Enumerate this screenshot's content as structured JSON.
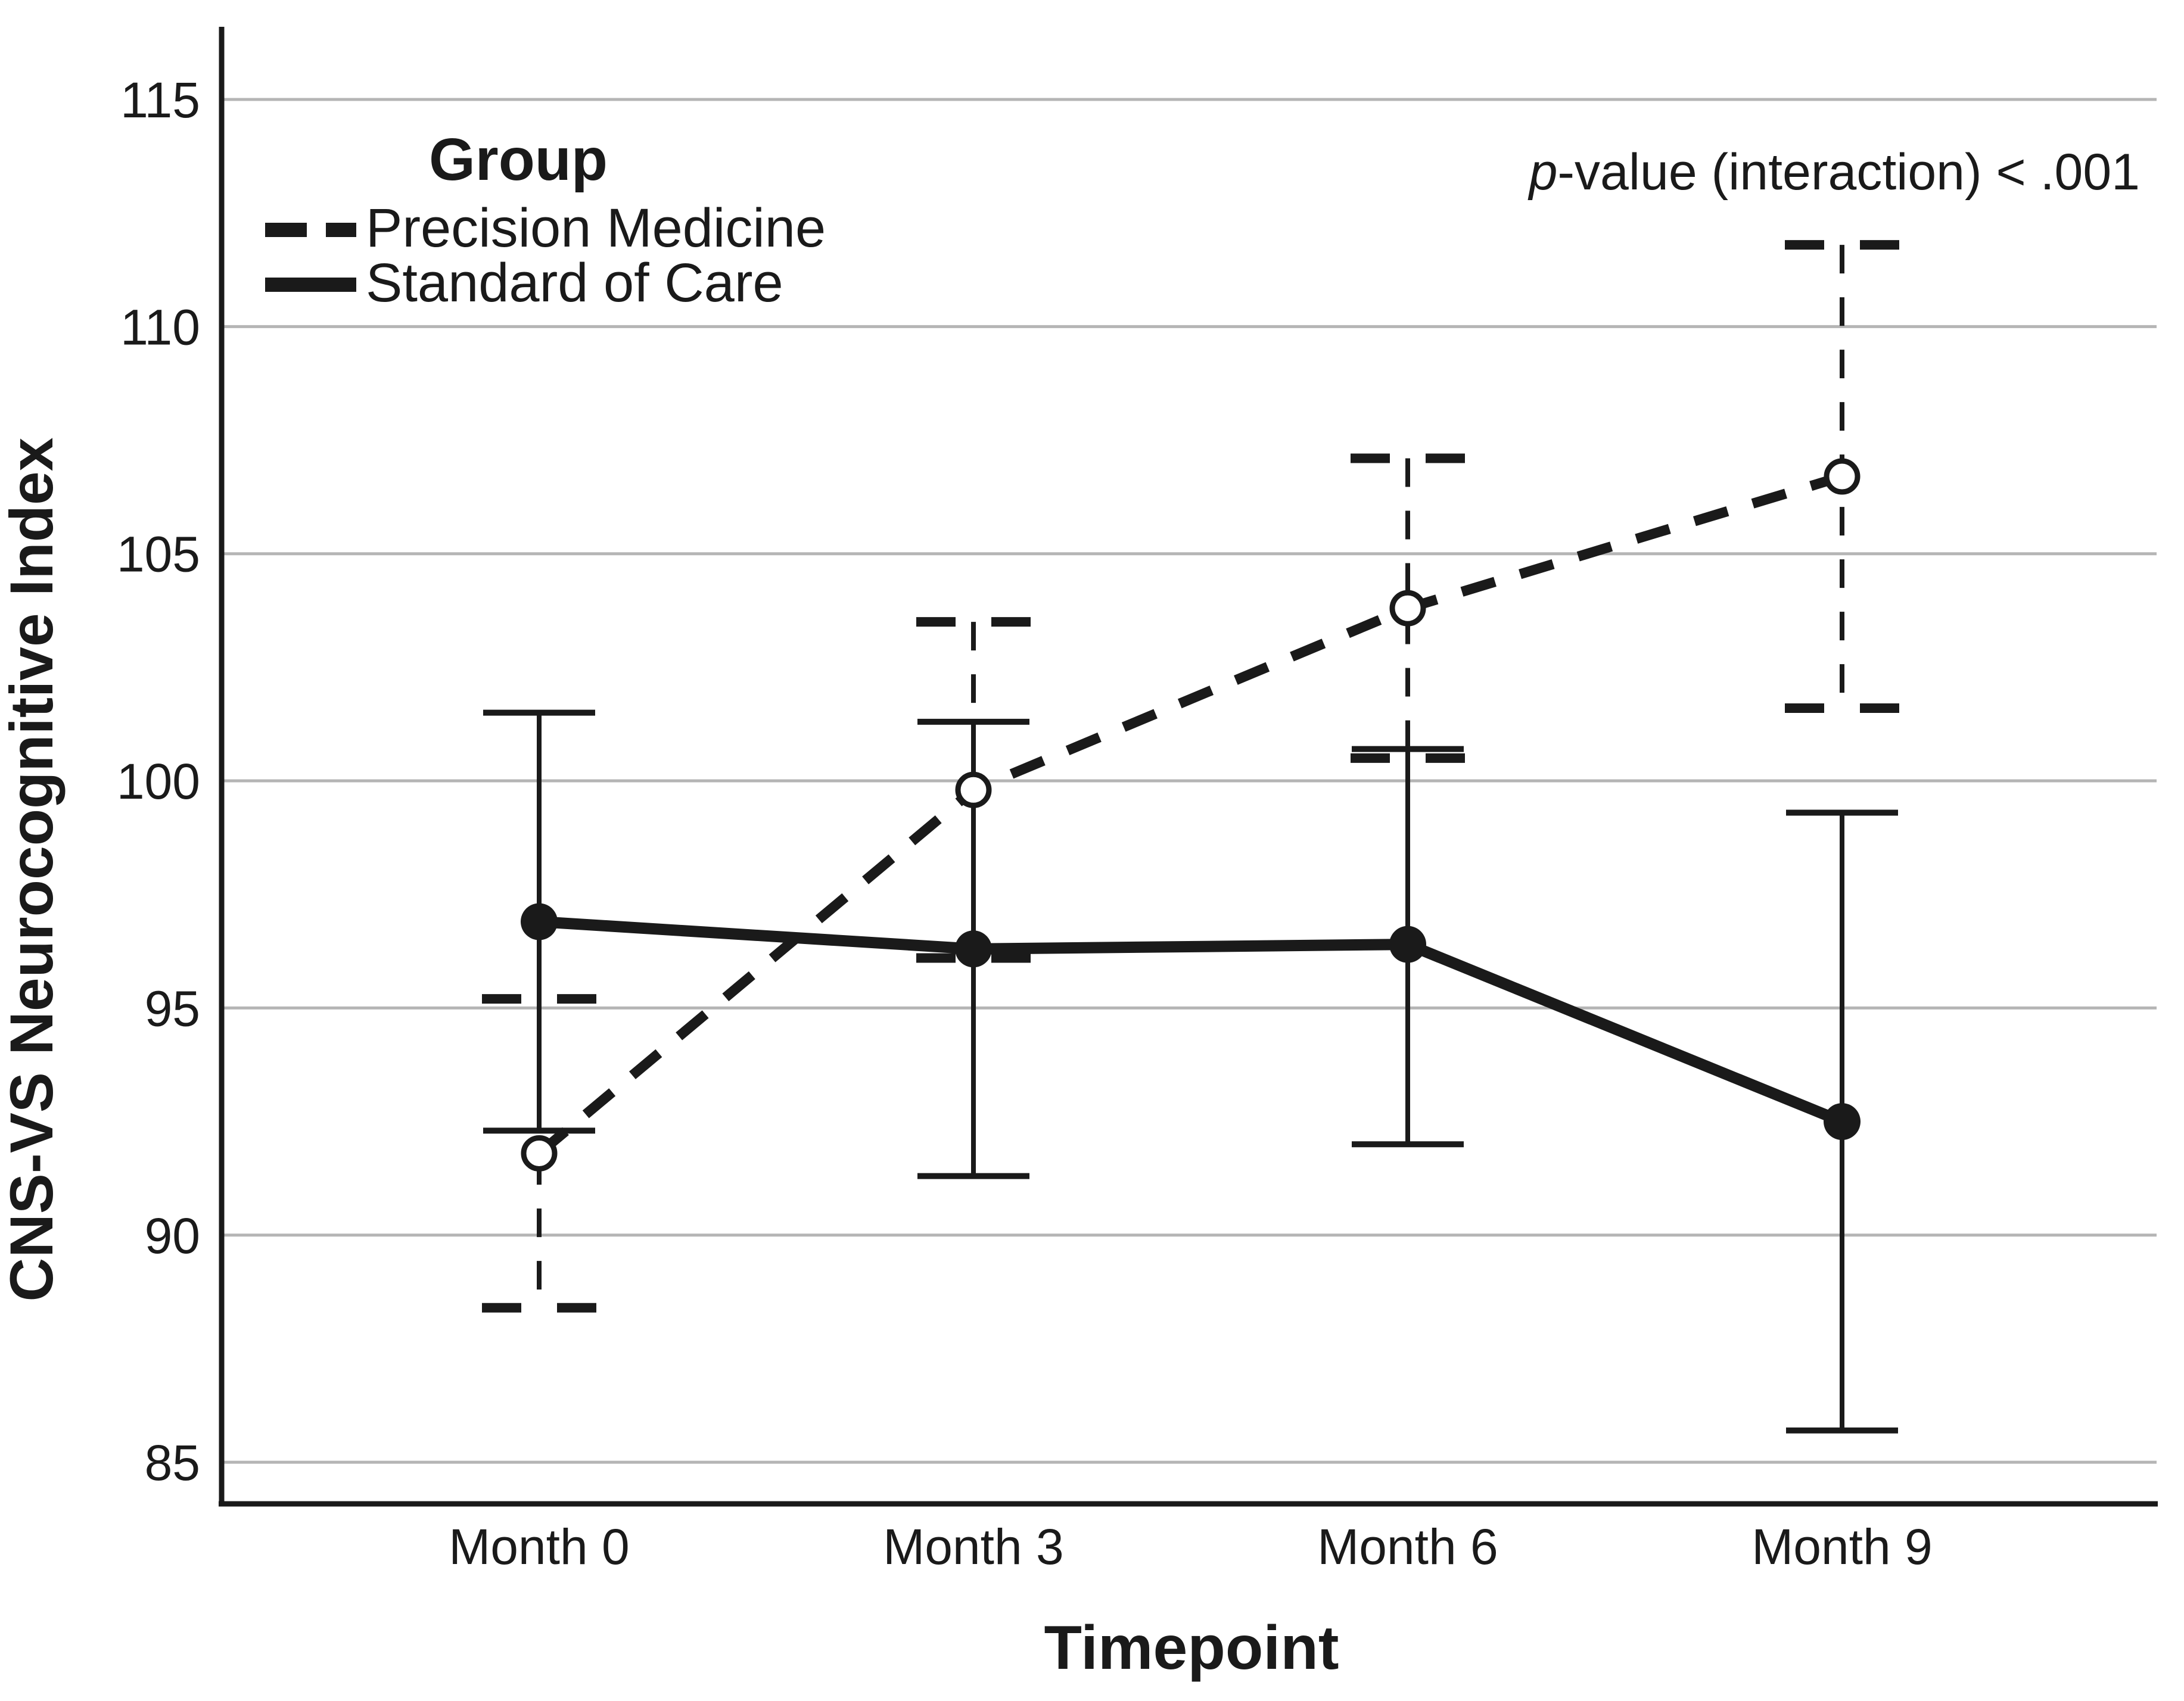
{
  "figure": {
    "background": "#ffffff",
    "line_color": "#1a1a1a",
    "gridline_color": "#b5b5b5",
    "annotation_p": "p",
    "annotation_rest": "-value (interaction) < .001"
  },
  "chart_data": {
    "type": "line",
    "title": "",
    "xlabel": "Timepoint",
    "ylabel": "CNS-VS Neurocognitive Index",
    "legend_title": "Group",
    "legend_position": "top-left",
    "grid": "horizontal",
    "annotation": "p-value (interaction) < .001",
    "categories": [
      "Month 0",
      "Month 3",
      "Month 6",
      "Month 9"
    ],
    "y_ticks": [
      115,
      110,
      105,
      100,
      95,
      90,
      85
    ],
    "ylim": [
      84,
      117
    ],
    "series": [
      {
        "name": "Precision Medicine",
        "line_style": "dashed",
        "marker": "open-circle",
        "values": [
          91.8,
          99.8,
          103.8,
          106.7
        ],
        "ci_low": [
          88.4,
          96.1,
          100.5,
          101.6
        ],
        "ci_high": [
          95.2,
          103.5,
          107.1,
          111.8
        ]
      },
      {
        "name": "Standard of Care",
        "line_style": "solid",
        "marker": "filled-circle",
        "values": [
          96.9,
          96.3,
          96.4,
          92.5
        ],
        "ci_low": [
          92.3,
          91.3,
          92.0,
          85.7
        ],
        "ci_high": [
          101.5,
          101.3,
          100.7,
          99.3
        ]
      }
    ]
  }
}
